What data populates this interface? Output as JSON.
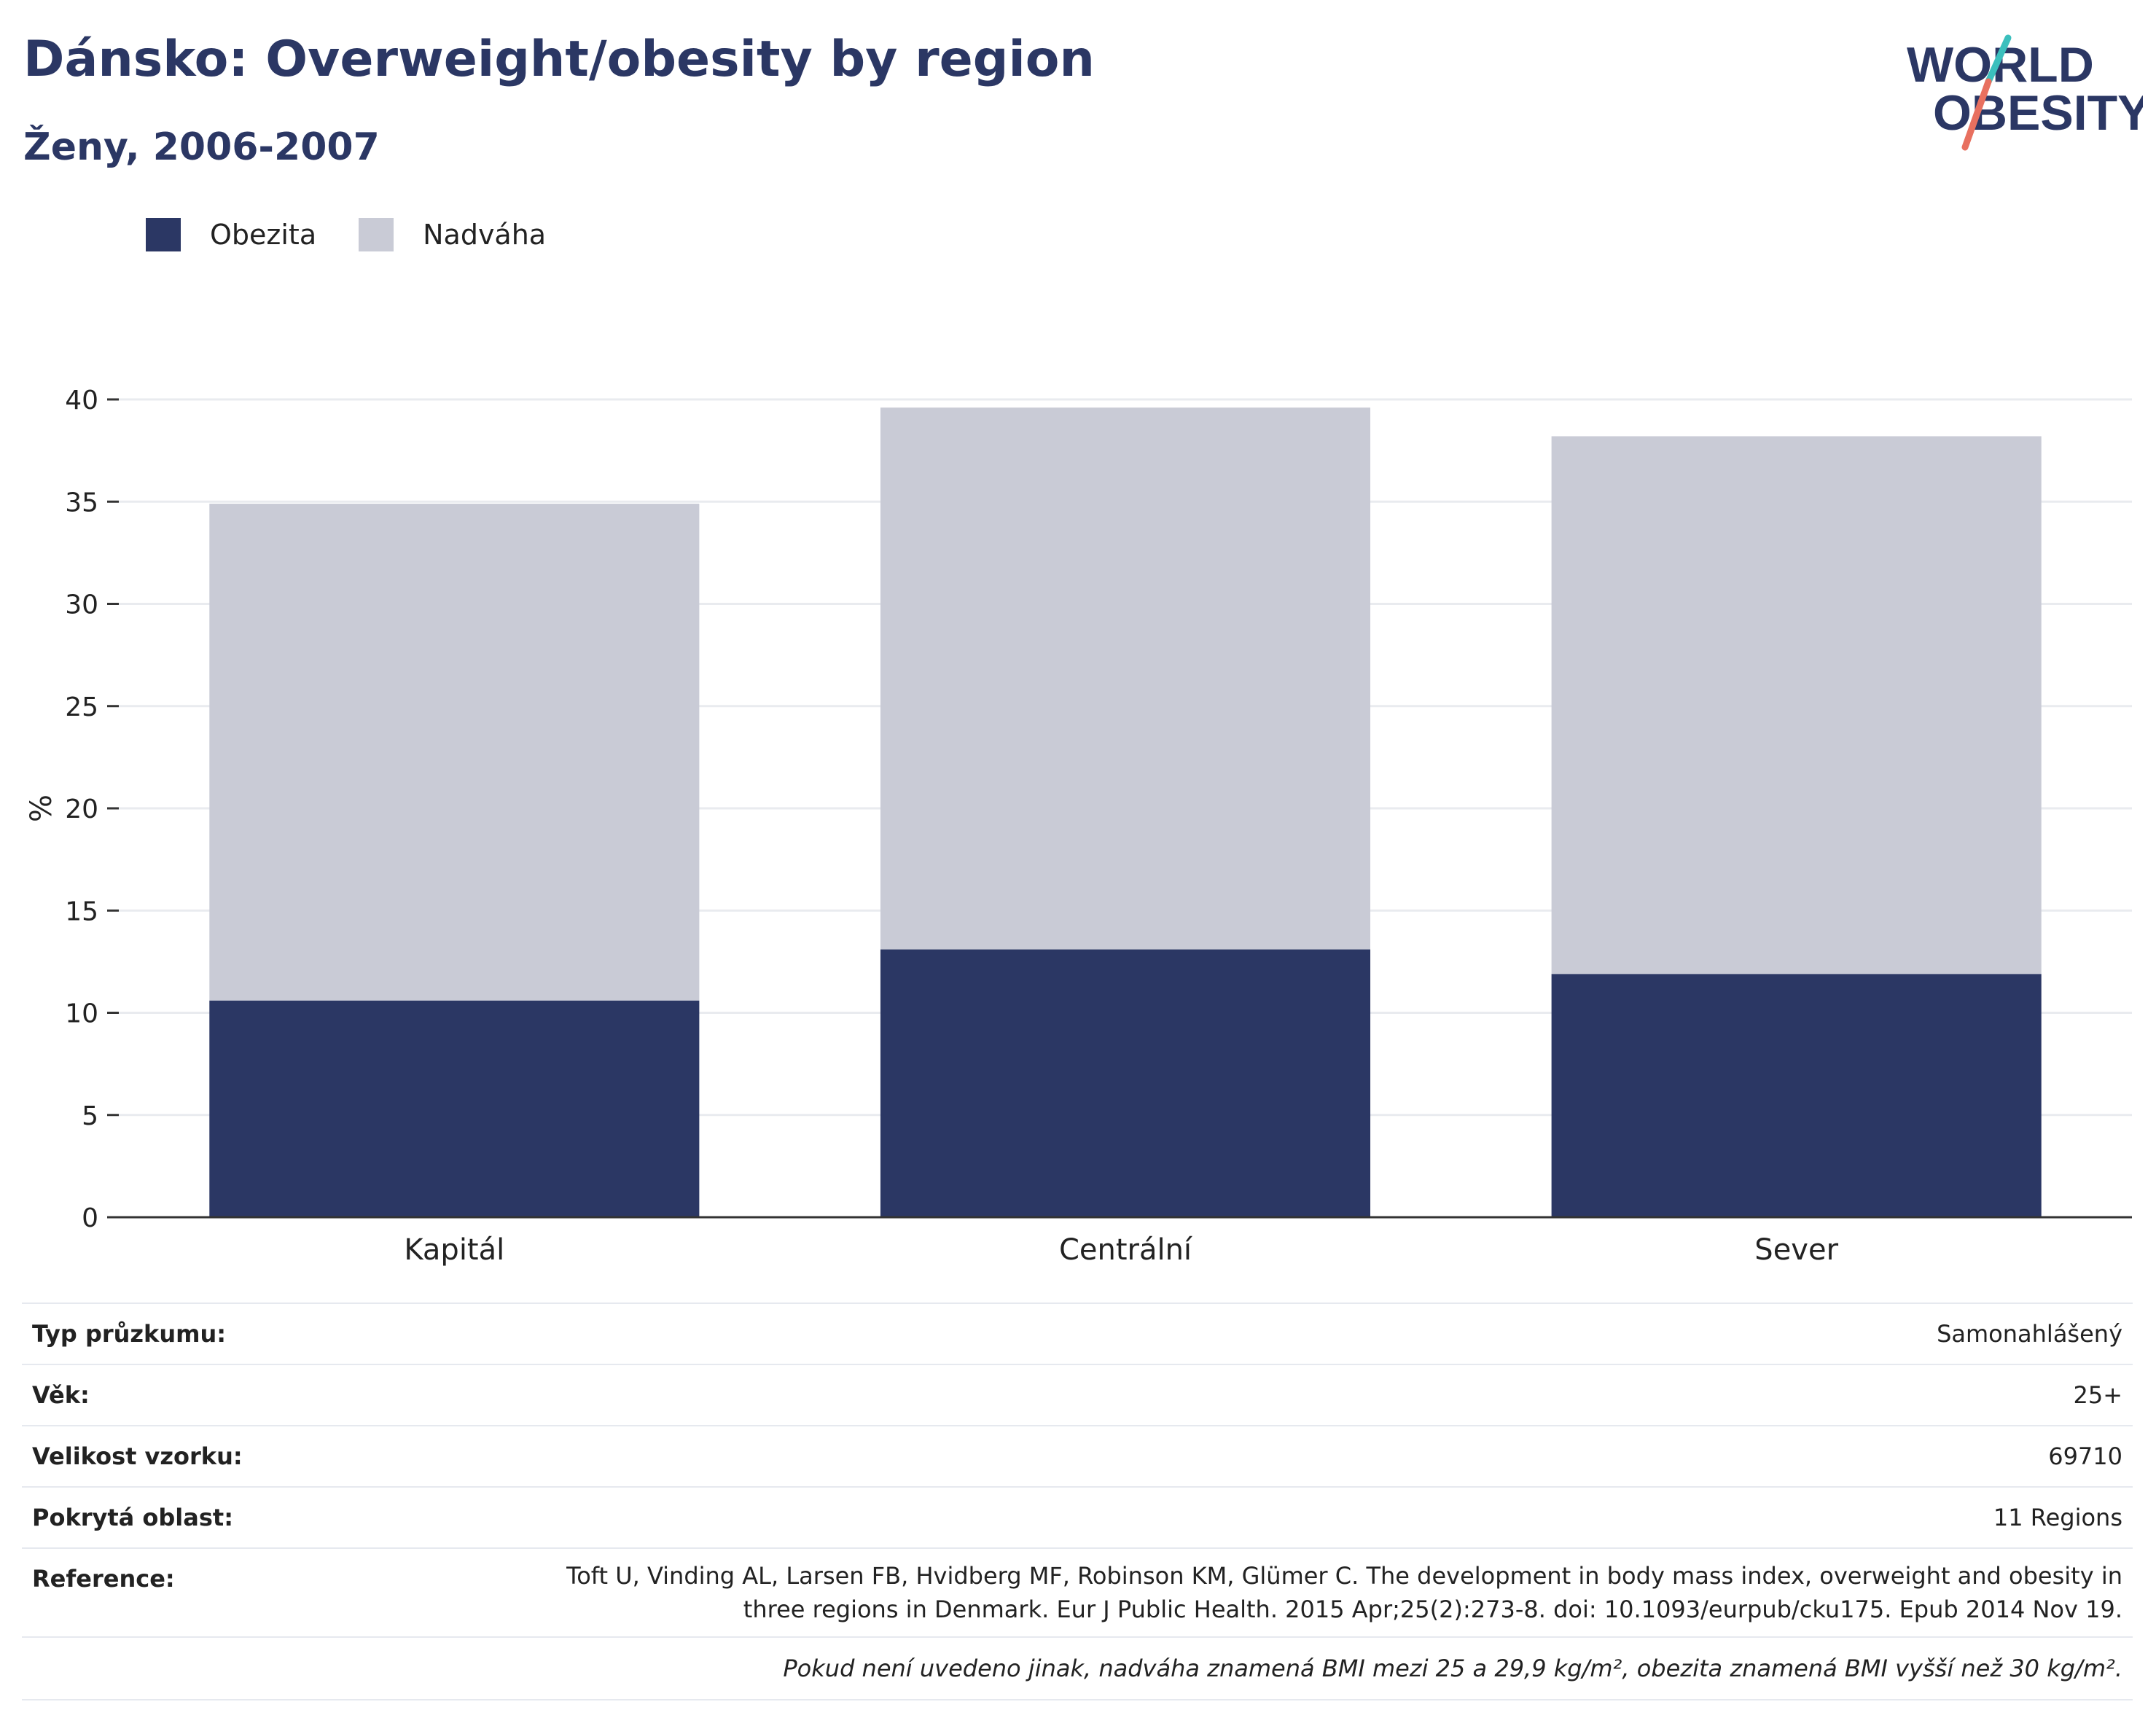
{
  "header": {
    "title": "Dánsko: Overweight/obesity by region",
    "subtitle": "Ženy, 2006-2007"
  },
  "logo": {
    "line1": "WORLD",
    "line2": "OBESITY"
  },
  "colors": {
    "obesity": "#2b3764",
    "overweight": "#c9cbd6",
    "title": "#2b3764",
    "logo_teal": "#3bbfbd",
    "logo_coral": "#e8705f"
  },
  "legend": [
    {
      "label": "Obezita",
      "color": "#2b3764"
    },
    {
      "label": "Nadváha",
      "color": "#c9cbd6"
    }
  ],
  "chart_data": {
    "type": "bar",
    "stacked": true,
    "categories": [
      "Kapitál",
      "Centrální",
      "Sever"
    ],
    "series": [
      {
        "name": "Obezita",
        "values": [
          10.6,
          13.1,
          11.9
        ]
      },
      {
        "name": "Nadváha",
        "values": [
          24.3,
          26.5,
          26.3
        ]
      }
    ],
    "ylabel": "%",
    "ylim": [
      0,
      40
    ],
    "yticks": [
      0,
      5,
      10,
      15,
      20,
      25,
      30,
      35,
      40
    ],
    "grid": true,
    "legend_position": "top-left"
  },
  "info": {
    "survey_type": {
      "label": "Typ průzkumu:",
      "value": "Samonahlášený"
    },
    "age": {
      "label": "Věk:",
      "value": "25+"
    },
    "sample_size": {
      "label": "Velikost vzorku:",
      "value": "69710"
    },
    "area": {
      "label": "Pokrytá oblast:",
      "value": "11 Regions"
    },
    "reference": {
      "label": "Reference:",
      "value": "Toft U, Vinding AL, Larsen FB, Hvidberg MF, Robinson KM, Glümer C. The development in body mass index, overweight and obesity in three regions in Denmark. Eur J Public Health. 2015 Apr;25(2):273-8. doi: 10.1093/eurpub/cku175. Epub 2014 Nov 19."
    },
    "note": "Pokud není uvedeno jinak, nadváha znamená BMI mezi 25 a 29,9 kg/m², obezita znamená BMI vyšší než 30 kg/m²."
  }
}
